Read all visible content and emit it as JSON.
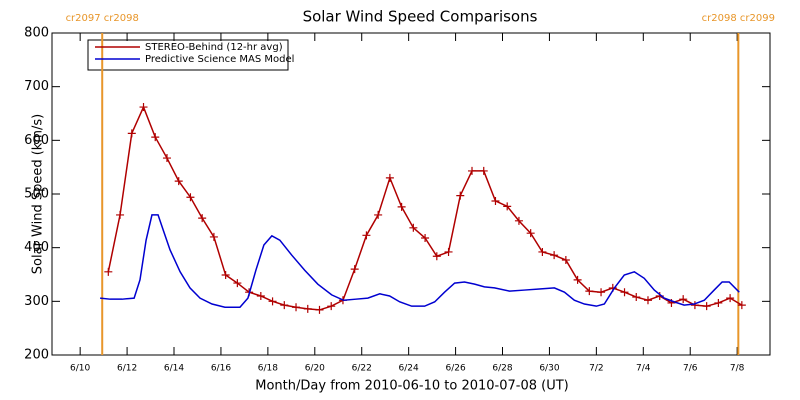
{
  "chart_data": {
    "type": "line",
    "title": "Solar Wind Speed Comparisons",
    "xlabel": "Month/Day from 2010-06-10 to 2010-07-08 (UT)",
    "ylabel": "Solar Wind Speed (km/s)",
    "xlim": [
      -1.2,
      29.4
    ],
    "ylim": [
      200,
      800
    ],
    "yticks": [
      200,
      300,
      400,
      500,
      600,
      700,
      800
    ],
    "xticks": [
      {
        "value": 0,
        "label": "6/10"
      },
      {
        "value": 2,
        "label": "6/12"
      },
      {
        "value": 4,
        "label": "6/14"
      },
      {
        "value": 6,
        "label": "6/16"
      },
      {
        "value": 8,
        "label": "6/18"
      },
      {
        "value": 10,
        "label": "6/20"
      },
      {
        "value": 12,
        "label": "6/22"
      },
      {
        "value": 14,
        "label": "6/24"
      },
      {
        "value": 16,
        "label": "6/26"
      },
      {
        "value": 18,
        "label": "6/28"
      },
      {
        "value": 20,
        "label": "6/30"
      },
      {
        "value": 22,
        "label": "7/2"
      },
      {
        "value": 24,
        "label": "7/4"
      },
      {
        "value": 26,
        "label": "7/6"
      },
      {
        "value": 28,
        "label": "7/8"
      }
    ],
    "legend": "upper left",
    "vlines": [
      {
        "x": 0.94,
        "label": "cr2097 cr2098",
        "color": "#e8962a"
      },
      {
        "x": 28.05,
        "label": "cr2098 cr2099",
        "color": "#e8962a"
      }
    ],
    "series": [
      {
        "name": "STEREO-Behind (12-hr avg)",
        "color": "#b00000",
        "markers": true,
        "x": [
          1.2,
          1.7,
          2.2,
          2.7,
          3.2,
          3.7,
          4.2,
          4.7,
          5.2,
          5.7,
          6.2,
          6.7,
          7.2,
          7.7,
          8.2,
          8.7,
          9.2,
          9.7,
          10.2,
          10.7,
          11.2,
          11.7,
          12.2,
          12.7,
          13.2,
          13.7,
          14.2,
          14.7,
          15.2,
          15.7,
          16.2,
          16.7,
          17.2,
          17.7,
          18.2,
          18.7,
          19.2,
          19.7,
          20.2,
          20.7,
          21.2,
          21.7,
          22.2,
          22.7,
          23.2,
          23.7,
          24.2,
          24.7,
          25.2,
          25.7,
          26.2,
          26.7,
          27.2,
          27.7,
          28.2
        ],
        "values": [
          355,
          461,
          613,
          662,
          606,
          567,
          524,
          494,
          455,
          420,
          349,
          334,
          317,
          310,
          300,
          293,
          289,
          286,
          284,
          291,
          302,
          360,
          423,
          461,
          530,
          476,
          437,
          418,
          384,
          392,
          497,
          543,
          543,
          487,
          477,
          450,
          427,
          392,
          386,
          377,
          340,
          319,
          317,
          325,
          317,
          308,
          302,
          310,
          297,
          304,
          293,
          291,
          297,
          306,
          293
        ]
      },
      {
        "name": "Predictive Science MAS Model",
        "color": "#0000d0",
        "markers": false,
        "x": [
          0.85,
          1.28,
          1.79,
          2.3,
          2.55,
          2.81,
          3.06,
          3.32,
          3.57,
          3.83,
          4.26,
          4.68,
          5.11,
          5.62,
          6.17,
          6.81,
          7.15,
          7.49,
          7.83,
          8.17,
          8.51,
          9.02,
          9.57,
          10.13,
          10.72,
          11.23,
          11.74,
          12.26,
          12.77,
          13.19,
          13.62,
          14.13,
          14.68,
          15.11,
          15.53,
          15.96,
          16.38,
          16.81,
          17.23,
          17.66,
          18.3,
          18.94,
          19.57,
          20.21,
          20.64,
          21.06,
          21.49,
          22,
          22.34,
          22.77,
          23.19,
          23.62,
          24.04,
          24.47,
          24.89,
          25.32,
          25.74,
          26.17,
          26.6,
          27.02,
          27.36,
          27.66,
          28.09
        ],
        "values": [
          306,
          304,
          304,
          306,
          340,
          414,
          461,
          461,
          429,
          396,
          355,
          325,
          306,
          295,
          289,
          289,
          306,
          358,
          405,
          422,
          414,
          386,
          358,
          332,
          312,
          302,
          304,
          306,
          314,
          310,
          299,
          291,
          291,
          299,
          317,
          334,
          336,
          332,
          327,
          325,
          319,
          321,
          323,
          325,
          317,
          302,
          295,
          291,
          295,
          325,
          349,
          355,
          343,
          321,
          306,
          299,
          293,
          295,
          302,
          321,
          336,
          336,
          317
        ]
      }
    ]
  }
}
